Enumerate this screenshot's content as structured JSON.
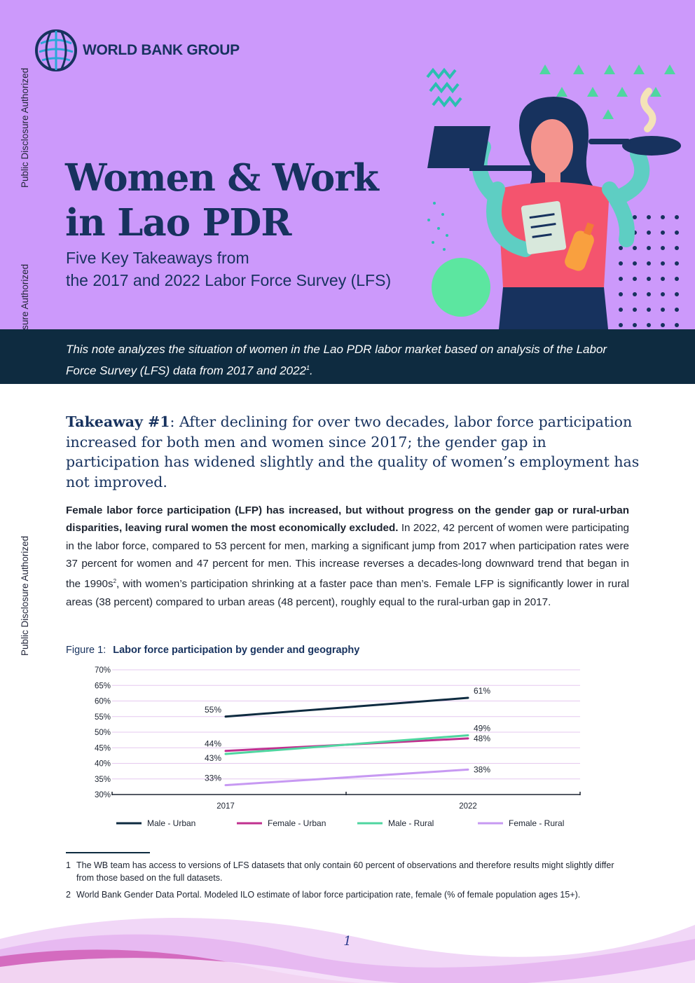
{
  "sidebar": {
    "labels": [
      "Public Disclosure Authorized",
      "Public Disclosure Authorized",
      "Public Disclosure Authorized"
    ]
  },
  "header": {
    "logo_text": "WORLD BANK GROUP",
    "title_line1": "Women & Work",
    "title_line2": "in Lao PDR",
    "subtitle_line1": "Five Key Takeaways from",
    "subtitle_line2": "the 2017 and 2022 Labor Force Survey (LFS)"
  },
  "intro": {
    "text": "This note analyzes the situation of women in the Lao PDR labor market based on analysis of the Labor Force Survey (LFS) data from 2017 and 2022",
    "sup": "1",
    "end": "."
  },
  "takeaway": {
    "label": "Takeaway #1",
    "text": ": After declining for over two decades, labor force participation increased for both men and women since 2017; the gender gap in participation has widened slightly and the quality of women’s employment has not improved."
  },
  "paragraph": {
    "bold": "Female labor force participation (LFP) has increased, but without progress on the gender gap or rural-urban disparities, leaving rural women the most economically excluded.",
    "text1": " In 2022, 42 percent of women were participating in the labor force, compared to 53 percent for men, marking a significant jump from 2017 when participation rates were 37 percent for women and 47 percent for men. This increase reverses a decades-long downward trend that began in the 1990s",
    "sup": "2",
    "text2": ", with women’s participation shrinking at a faster pace than men’s. Female LFP is significantly lower in rural areas (38 percent) compared to urban areas (48 percent), roughly equal to the rural-urban gap in 2017."
  },
  "figure": {
    "number": "Figure 1:",
    "title": "Labor force participation by gender and geography"
  },
  "chart_data": {
    "type": "line",
    "x": [
      "2017",
      "2022"
    ],
    "ylim": [
      30,
      70
    ],
    "yticks": [
      "30%",
      "35%",
      "40%",
      "45%",
      "50%",
      "55%",
      "60%",
      "65%",
      "70%"
    ],
    "grid": true,
    "legend_position": "bottom",
    "series": [
      {
        "name": "Male - Urban",
        "values": [
          55,
          61
        ],
        "labels": [
          "55%",
          "61%"
        ],
        "color": "#0e2b40"
      },
      {
        "name": "Female - Urban",
        "values": [
          44,
          48
        ],
        "labels": [
          "44%",
          "48%"
        ],
        "color": "#c0308f"
      },
      {
        "name": "Male - Rural",
        "values": [
          43,
          49
        ],
        "labels": [
          "43%",
          "49%"
        ],
        "color": "#4fd6a0"
      },
      {
        "name": "Female - Rural",
        "values": [
          33,
          38
        ],
        "labels": [
          "33%",
          "38%"
        ],
        "color": "#c799f2"
      }
    ]
  },
  "footnotes": [
    {
      "num": "1",
      "text": "The WB team has access to versions of LFS datasets that only contain 60 percent of observations and therefore results might slightly differ from those based on the full datasets."
    },
    {
      "num": "2",
      "text": "World Bank Gender Data Portal. Modeled ILO estimate of labor force participation rate, female (% of female population ages 15+)."
    }
  ],
  "page_number": "1",
  "colors": {
    "hero_bg": "#cc99fb",
    "band_bg": "#0e2b40",
    "title": "#17325e"
  }
}
